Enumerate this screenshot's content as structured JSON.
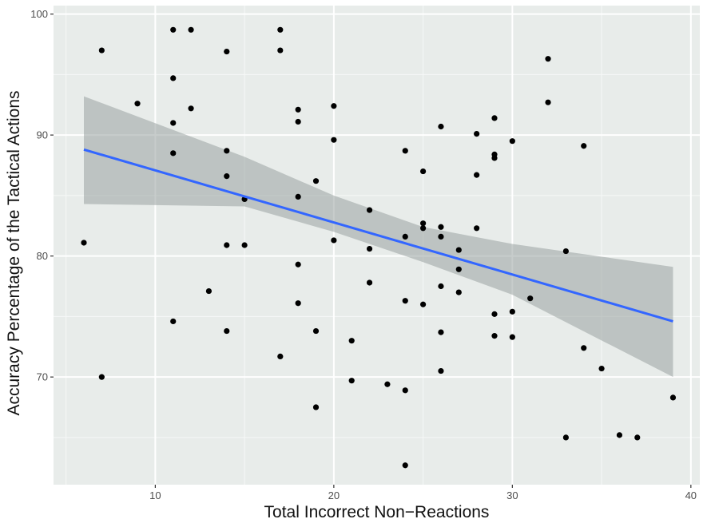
{
  "chart_data": {
    "type": "scatter",
    "title": "",
    "xlabel": "Total Incorrect Non−Reactions",
    "ylabel": "Accuracy Percentage of the Tactical Actions",
    "xlim": [
      4.3,
      40.5
    ],
    "ylim": [
      61.1,
      100.7
    ],
    "x_ticks": [
      10,
      20,
      30,
      40
    ],
    "y_ticks": [
      70,
      80,
      90,
      100
    ],
    "grid": true,
    "legend": null,
    "points": [
      [
        6,
        81.1
      ],
      [
        7,
        97.0
      ],
      [
        7,
        70.0
      ],
      [
        9,
        92.6
      ],
      [
        11,
        98.7
      ],
      [
        11,
        94.7
      ],
      [
        11,
        91.0
      ],
      [
        11,
        88.5
      ],
      [
        11,
        74.6
      ],
      [
        12,
        98.7
      ],
      [
        12,
        92.2
      ],
      [
        13,
        77.1
      ],
      [
        14,
        96.9
      ],
      [
        14,
        88.7
      ],
      [
        14,
        86.6
      ],
      [
        14,
        80.9
      ],
      [
        14,
        73.8
      ],
      [
        15,
        84.7
      ],
      [
        15,
        80.9
      ],
      [
        17,
        98.7
      ],
      [
        17,
        97.0
      ],
      [
        17,
        71.7
      ],
      [
        18,
        92.1
      ],
      [
        18,
        91.1
      ],
      [
        18,
        84.9
      ],
      [
        18,
        79.3
      ],
      [
        18,
        76.1
      ],
      [
        19,
        86.2
      ],
      [
        19,
        73.8
      ],
      [
        19,
        67.5
      ],
      [
        20,
        92.4
      ],
      [
        20,
        89.6
      ],
      [
        20,
        81.3
      ],
      [
        21,
        73.0
      ],
      [
        21,
        69.7
      ],
      [
        22,
        83.8
      ],
      [
        22,
        80.6
      ],
      [
        22,
        77.8
      ],
      [
        23,
        69.4
      ],
      [
        24,
        88.7
      ],
      [
        24,
        81.6
      ],
      [
        24,
        76.3
      ],
      [
        24,
        68.9
      ],
      [
        24,
        62.7
      ],
      [
        25,
        87.0
      ],
      [
        25,
        82.7
      ],
      [
        25,
        82.3
      ],
      [
        25,
        76.0
      ],
      [
        26,
        90.7
      ],
      [
        26,
        82.4
      ],
      [
        26,
        81.6
      ],
      [
        26,
        77.5
      ],
      [
        26,
        73.7
      ],
      [
        26,
        70.5
      ],
      [
        27,
        80.5
      ],
      [
        27,
        78.9
      ],
      [
        27,
        77.0
      ],
      [
        28,
        90.1
      ],
      [
        28,
        86.7
      ],
      [
        28,
        82.3
      ],
      [
        29,
        91.4
      ],
      [
        29,
        88.4
      ],
      [
        29,
        88.1
      ],
      [
        29,
        75.2
      ],
      [
        29,
        73.4
      ],
      [
        30,
        89.5
      ],
      [
        30,
        75.4
      ],
      [
        30,
        73.3
      ],
      [
        31,
        76.5
      ],
      [
        32,
        96.3
      ],
      [
        32,
        92.7
      ],
      [
        33,
        80.4
      ],
      [
        33,
        65.0
      ],
      [
        34,
        89.1
      ],
      [
        34,
        72.4
      ],
      [
        35,
        70.7
      ],
      [
        36,
        65.2
      ],
      [
        37,
        65.0
      ],
      [
        39,
        68.3
      ]
    ],
    "regression": {
      "method": "lm",
      "x": [
        6,
        39
      ],
      "y": [
        88.8,
        74.6
      ],
      "ci_upper": [
        [
          6,
          93.2
        ],
        [
          15,
          88.2
        ],
        [
          20,
          85.0
        ],
        [
          25,
          82.4
        ],
        [
          30,
          81.0
        ],
        [
          39,
          79.1
        ]
      ],
      "ci_lower": [
        [
          6,
          84.3
        ],
        [
          15,
          84.1
        ],
        [
          20,
          82.0
        ],
        [
          25,
          79.5
        ],
        [
          30,
          76.8
        ],
        [
          39,
          70.0
        ]
      ],
      "line_color": "#3366FF",
      "band_color": "#c0c9c7"
    },
    "panel_background": "#e8ecea",
    "point_color": "#000000"
  }
}
